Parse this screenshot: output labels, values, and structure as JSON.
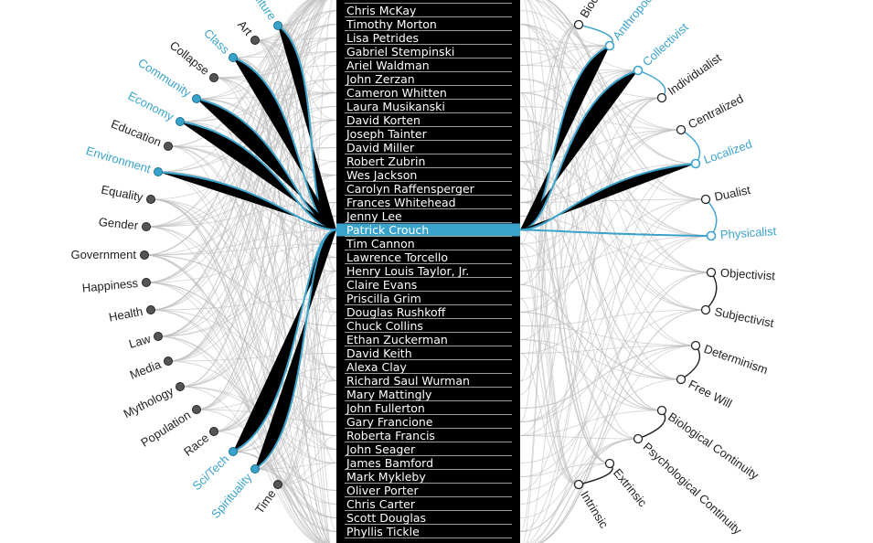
{
  "colors": {
    "accent": "#3aa3cc",
    "list_bg": "#000000",
    "link_gray": "#bdbdbd"
  },
  "names": [
    "Chris McKay",
    "Timothy Morton",
    "Lisa Petrides",
    "Gabriel Stempinski",
    "Ariel Waldman",
    "John Zerzan",
    "Cameron Whitten",
    "Laura Musikanski",
    "David Korten",
    "Joseph Tainter",
    "David Miller",
    "Robert Zubrin",
    "Wes Jackson",
    "Carolyn Raffensperger",
    "Frances Whitehead",
    "Jenny Lee",
    "Patrick Crouch",
    "Tim Cannon",
    "Lawrence Torcello",
    "Henry Louis Taylor, Jr.",
    "Claire Evans",
    "Priscilla Grim",
    "Douglas Rushkoff",
    "Chuck Collins",
    "Ethan Zuckerman",
    "David Keith",
    "Alexa Clay",
    "Richard Saul Wurman",
    "Mary Mattingly",
    "John Fullerton",
    "Gary Francione",
    "Roberta Francis",
    "John Seager",
    "James Bamford",
    "Mark Mykleby",
    "Oliver Porter",
    "Chris Carter",
    "Scott Douglas",
    "Phyllis Tickle"
  ],
  "selected_name": "Patrick Crouch",
  "topics": [
    {
      "label": "Agriculture",
      "active": true
    },
    {
      "label": "Art",
      "active": false
    },
    {
      "label": "Class",
      "active": true
    },
    {
      "label": "Collapse",
      "active": false
    },
    {
      "label": "Community",
      "active": true
    },
    {
      "label": "Economy",
      "active": true
    },
    {
      "label": "Education",
      "active": false
    },
    {
      "label": "Environment",
      "active": true
    },
    {
      "label": "Equality",
      "active": false
    },
    {
      "label": "Gender",
      "active": false
    },
    {
      "label": "Government",
      "active": false
    },
    {
      "label": "Happiness",
      "active": false
    },
    {
      "label": "Health",
      "active": false
    },
    {
      "label": "Law",
      "active": false
    },
    {
      "label": "Media",
      "active": false
    },
    {
      "label": "Mythology",
      "active": false
    },
    {
      "label": "Population",
      "active": false
    },
    {
      "label": "Race",
      "active": false
    },
    {
      "label": "Sci/Tech",
      "active": true
    },
    {
      "label": "Spirituality",
      "active": true
    },
    {
      "label": "Time",
      "active": false
    }
  ],
  "philosophies": [
    {
      "label": "Biocentric",
      "active": false
    },
    {
      "label": "Anthropocentric",
      "active": true
    },
    {
      "label": "Collectivist",
      "active": true
    },
    {
      "label": "Individualist",
      "active": false
    },
    {
      "label": "Centralized",
      "active": false
    },
    {
      "label": "Localized",
      "active": true
    },
    {
      "label": "Dualist",
      "active": false
    },
    {
      "label": "Physicalist",
      "active": true
    },
    {
      "label": "Objectivist",
      "active": false
    },
    {
      "label": "Subjectivist",
      "active": false
    },
    {
      "label": "Determinism",
      "active": false
    },
    {
      "label": "Free Will",
      "active": false
    },
    {
      "label": "Biological Continuity",
      "active": false
    },
    {
      "label": "Psychological Continuity",
      "active": false
    },
    {
      "label": "Extrinsic",
      "active": false
    },
    {
      "label": "Intrinsic",
      "active": false
    }
  ]
}
